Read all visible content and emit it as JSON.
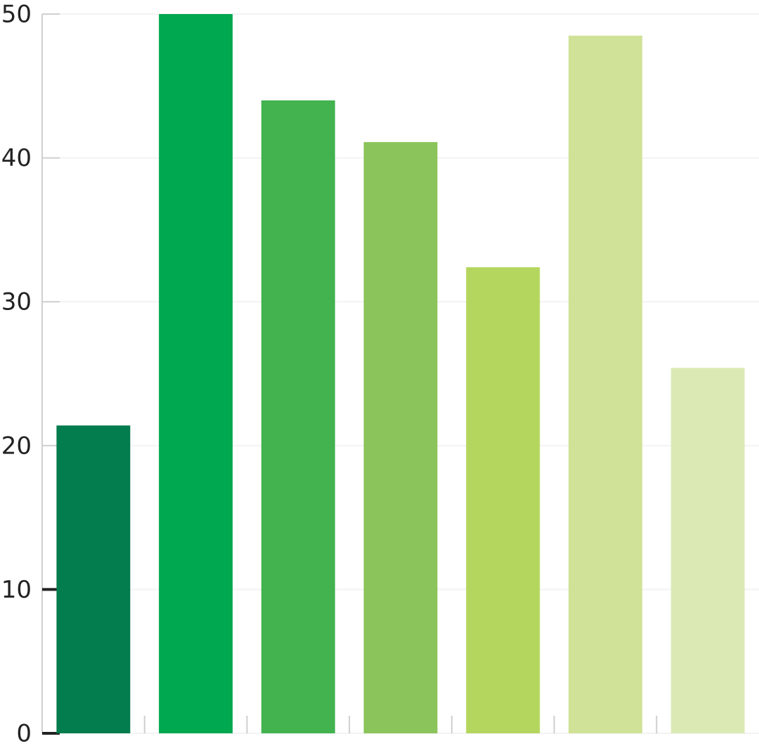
{
  "chart_data": {
    "type": "bar",
    "categories": [
      null,
      null,
      null,
      null,
      null,
      null,
      null
    ],
    "values": [
      21.4,
      50,
      44,
      41.1,
      32.4,
      48.5,
      25.4
    ],
    "colors": [
      "#037c4e",
      "#00a84f",
      "#42b34f",
      "#8bc45a",
      "#b5d65e",
      "#d0e297",
      "#dbeab4"
    ],
    "ylim": [
      0,
      50
    ],
    "yticks": [
      0,
      10,
      20,
      30,
      40,
      50
    ],
    "grid": true
  }
}
